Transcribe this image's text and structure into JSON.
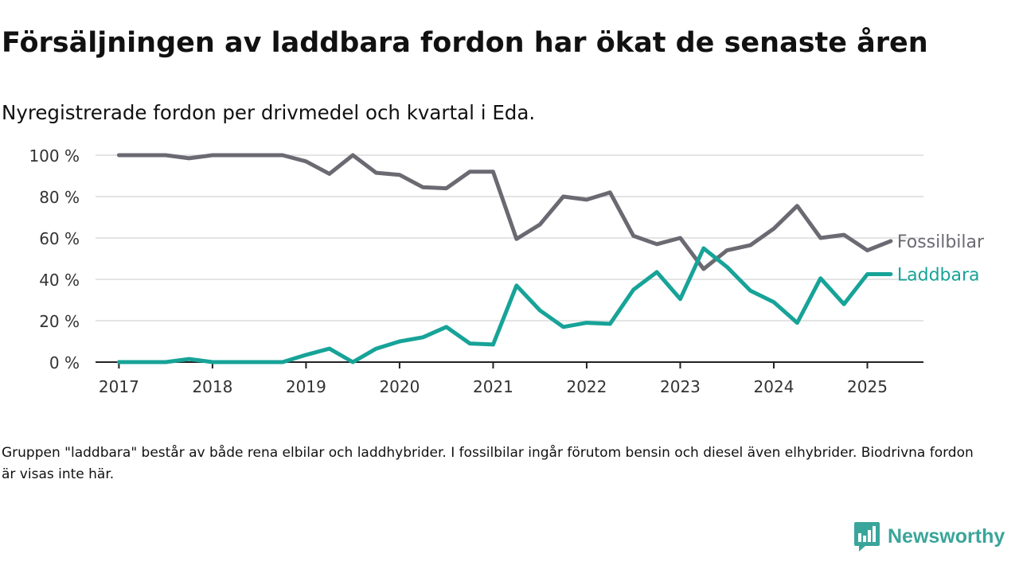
{
  "header": {
    "title": "Försäljningen av laddbara fordon har ökat de senaste åren",
    "subtitle": "Nyregistrerade fordon per drivmedel och kvartal i Eda."
  },
  "footnote": "Gruppen \"laddbara\" består av både rena elbilar och laddhybrider. I fossilbilar ingår förutom bensin och diesel även elhybrider. Biodrivna fordon är visas inte här.",
  "brand": {
    "name": "Newsworthy",
    "icon": "newsworthy-logo-icon",
    "color": "#3aa59a"
  },
  "chart_data": {
    "type": "line",
    "title": "",
    "xlabel": "",
    "ylabel": "",
    "xlim": [
      2016.75,
      2025.6
    ],
    "ylim": [
      0,
      100
    ],
    "grid": true,
    "x_ticks": [
      2017,
      2018,
      2019,
      2020,
      2021,
      2022,
      2023,
      2024,
      2025
    ],
    "x_tick_labels": [
      "2017",
      "2018",
      "2019",
      "2020",
      "2021",
      "2022",
      "2023",
      "2024",
      "2025"
    ],
    "y_ticks": [
      0,
      20,
      40,
      60,
      80,
      100
    ],
    "y_tick_labels": [
      "0 %",
      "20 %",
      "40 %",
      "60 %",
      "80 %",
      "100 %"
    ],
    "x": [
      2017,
      2017.25,
      2017.5,
      2017.75,
      2018,
      2018.25,
      2018.5,
      2018.75,
      2019,
      2019.25,
      2019.5,
      2019.75,
      2020,
      2020.25,
      2020.5,
      2020.75,
      2021,
      2021.25,
      2021.5,
      2021.75,
      2022,
      2022.25,
      2022.5,
      2022.75,
      2023,
      2023.25,
      2023.5,
      2023.75,
      2024,
      2024.25,
      2024.5,
      2024.75,
      2025,
      2025.25
    ],
    "series": [
      {
        "name": "Fossilbilar",
        "color": "#6b6a72",
        "values": [
          100,
          100,
          100,
          98.5,
          100,
          100,
          100,
          100,
          97,
          91,
          100,
          91.5,
          90.5,
          84.5,
          84,
          92,
          92,
          59.5,
          66.5,
          80,
          78.5,
          82,
          61,
          57,
          60,
          45,
          54,
          56.5,
          64.5,
          75.5,
          60,
          61.5,
          54,
          58.5
        ]
      },
      {
        "name": "Laddbara",
        "color": "#17a398",
        "values": [
          0,
          0,
          0,
          1.5,
          0,
          0,
          0,
          0,
          3.5,
          6.5,
          0,
          6.5,
          10,
          12,
          17,
          9,
          8.5,
          37,
          25,
          17,
          19,
          18.5,
          35,
          43.5,
          30.5,
          55,
          46,
          34.5,
          29,
          19,
          40.5,
          28,
          42.5,
          42.5
        ]
      }
    ]
  }
}
